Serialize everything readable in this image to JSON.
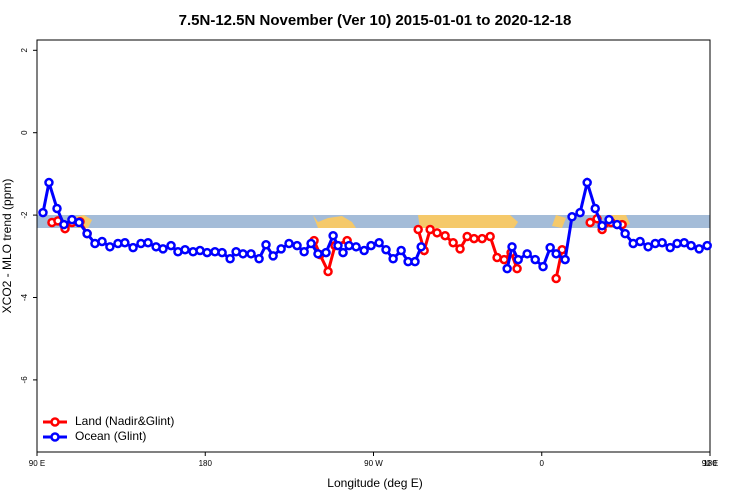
{
  "chart_data": {
    "type": "line",
    "title": "7.5N-12.5N November (Ver 10)   2015-01-01 to 2020-12-18",
    "x_label": "Longitude (deg E)",
    "y_label": "XCO2 - MLO trend (ppm)",
    "xlim": [
      90,
      450
    ],
    "xticks": [
      {
        "value": 90,
        "label": "90 E"
      },
      {
        "value": 180,
        "label": "180"
      },
      {
        "value": 270,
        "label": "90 W"
      },
      {
        "value": 360,
        "label": "0"
      },
      {
        "value": 450,
        "label": "90 E"
      },
      {
        "value": 540,
        "label": "180"
      }
    ],
    "ylim": [
      -7.75,
      2.25
    ],
    "yticks": [
      -6,
      -4,
      -2,
      0,
      2
    ],
    "legend": "bottom-left",
    "series": [
      {
        "name": "Land (Nadir&Glint)",
        "color": "#ff0000",
        "x": [
          98.0,
          101.2,
          105.0,
          108.7,
          113.0,
          116.8,
          null,
          238.2,
          241.4,
          245.7,
          249.4,
          255.9,
          null,
          293.9,
          297.1,
          300.3,
          304.0,
          308.3,
          312.6,
          316.3,
          320.1,
          323.8,
          328.1,
          332.4,
          336.1,
          339.9,
          343.6,
          346.8,
          null,
          367.7,
          370.9,
          null,
          385.9,
          389.6,
          392.3,
          397.1,
          403.0
        ],
        "values": [
          -2.18,
          -2.14,
          -2.33,
          -2.18,
          -2.16,
          -2.45,
          null,
          -2.62,
          -2.96,
          -3.37,
          -2.74,
          -2.62,
          null,
          -2.35,
          -2.86,
          -2.35,
          -2.43,
          -2.5,
          -2.67,
          -2.82,
          -2.52,
          -2.57,
          -2.57,
          -2.52,
          -3.03,
          -3.08,
          -2.91,
          -3.3,
          null,
          -3.54,
          -2.84,
          null,
          -2.18,
          -2.09,
          -2.35,
          -2.18,
          -2.23
        ]
      },
      {
        "name": "Ocean (Glint)",
        "color": "#0000ff",
        "x": [
          93.2,
          96.4,
          100.7,
          104.4,
          108.7,
          112.5,
          116.8,
          121.0,
          124.8,
          129.0,
          133.3,
          137.0,
          141.4,
          145.6,
          149.4,
          153.7,
          157.4,
          161.7,
          165.4,
          169.2,
          173.5,
          177.2,
          181.0,
          185.2,
          189.0,
          193.3,
          196.5,
          200.2,
          204.5,
          208.8,
          212.5,
          216.3,
          220.6,
          224.8,
          229.1,
          232.9,
          236.6,
          240.3,
          244.6,
          248.4,
          251.0,
          253.7,
          256.9,
          260.7,
          265.0,
          268.7,
          273.0,
          276.7,
          280.5,
          284.8,
          288.5,
          292.2,
          295.5,
          null,
          341.5,
          344.1,
          347.4,
          352.2,
          356.5,
          360.7,
          364.5,
          367.7,
          372.5,
          376.2,
          380.5,
          384.3,
          388.6,
          392.3,
          396.0,
          400.3,
          404.6,
          408.9,
          412.6,
          416.9,
          420.7,
          424.4,
          428.7,
          432.4,
          436.2,
          439.9,
          444.2,
          448.5
        ],
        "values": [
          -1.94,
          -1.21,
          -1.84,
          -2.23,
          -2.11,
          -2.18,
          -2.45,
          -2.69,
          -2.64,
          -2.77,
          -2.69,
          -2.67,
          -2.79,
          -2.69,
          -2.67,
          -2.77,
          -2.82,
          -2.74,
          -2.89,
          -2.84,
          -2.89,
          -2.86,
          -2.91,
          -2.89,
          -2.91,
          -3.06,
          -2.89,
          -2.94,
          -2.94,
          -3.06,
          -2.72,
          -2.99,
          -2.82,
          -2.69,
          -2.74,
          -2.89,
          -2.69,
          -2.94,
          -2.91,
          -2.5,
          -2.74,
          -2.91,
          -2.74,
          -2.77,
          -2.86,
          -2.74,
          -2.67,
          -2.84,
          -3.06,
          -2.86,
          -3.13,
          -3.13,
          -2.77,
          null,
          -3.3,
          -2.77,
          -3.08,
          -2.94,
          -3.08,
          -3.25,
          -2.79,
          -2.94,
          -3.08,
          -2.04,
          -1.94,
          -1.21,
          -1.84,
          -2.26,
          -2.11,
          -2.23,
          -2.45,
          -2.69,
          -2.64,
          -2.77,
          -2.69,
          -2.67,
          -2.79,
          -2.69,
          -2.67,
          -2.74,
          -2.82,
          -2.74
        ]
      }
    ]
  }
}
